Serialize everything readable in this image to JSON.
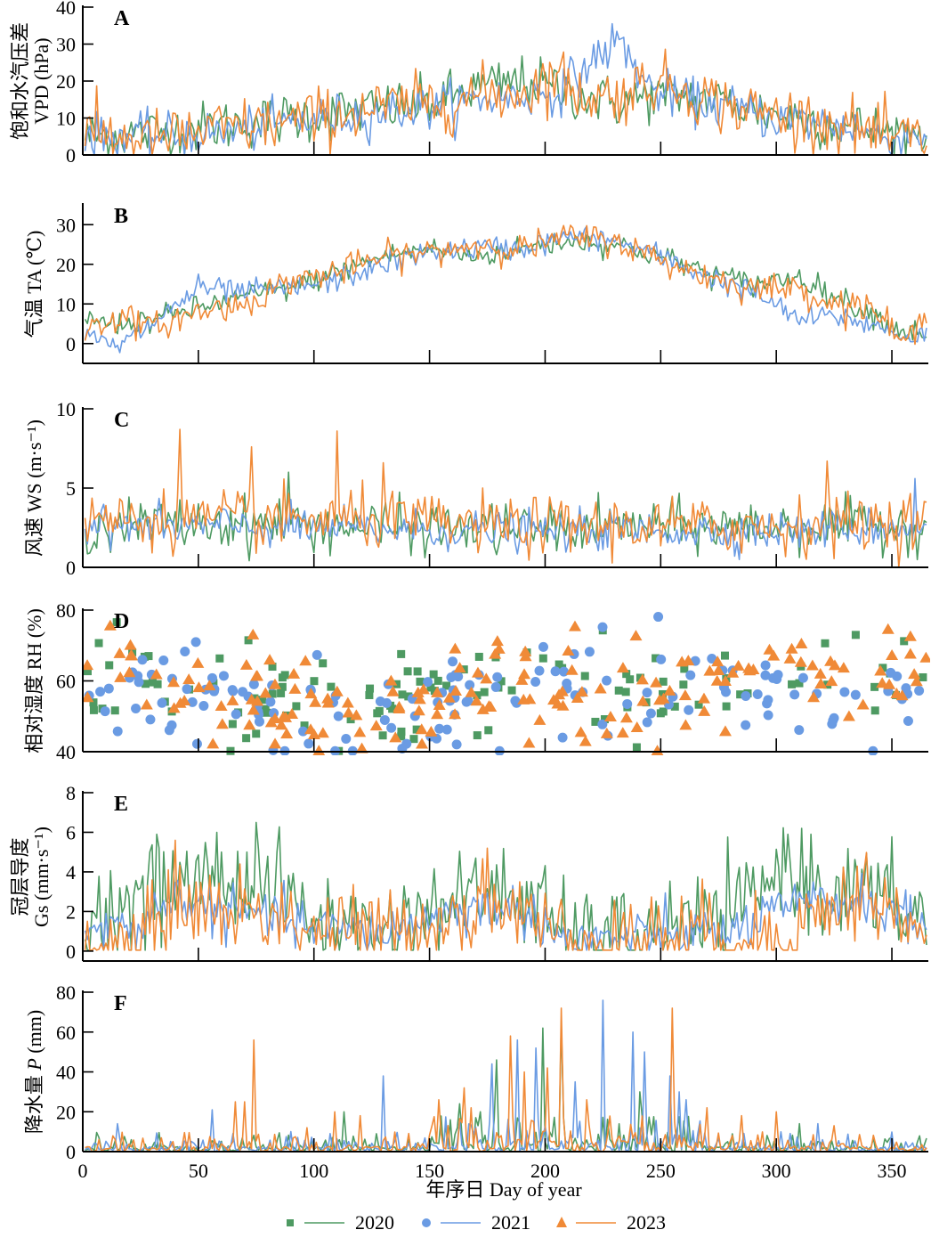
{
  "figure": {
    "xlabel": "年序日 Day of  year",
    "x_range": [
      0,
      365
    ],
    "x_ticks": [
      0,
      50,
      100,
      150,
      200,
      250,
      300,
      350
    ],
    "legend_placement": "bottom-center",
    "data_note": "Each series is recorded as anchor points read from the image. The script interpolates between them and adds small seeded noise for daily texture, so plotted lines are approximate, not exact daily values."
  },
  "legend": [
    {
      "label": "2020",
      "color": "#4E9A62",
      "marker": "square"
    },
    {
      "label": "2021",
      "color": "#6A9BE3",
      "marker": "circle"
    },
    {
      "label": "2023",
      "color": "#F08A37",
      "marker": "triangle"
    }
  ],
  "chart_data": [
    {
      "id": "A",
      "type": "line",
      "letter": "A",
      "ylabel_cn": "饱和水汽压差",
      "ylabel_en": "VPD (hPa)",
      "ylim": [
        0,
        40
      ],
      "yticks": [
        0,
        10,
        20,
        30,
        40
      ],
      "grid": false,
      "x_anchors": [
        0,
        30,
        60,
        90,
        120,
        150,
        170,
        190,
        205,
        215,
        225,
        232,
        245,
        260,
        280,
        300,
        330,
        350,
        365
      ],
      "series": [
        {
          "name": "2020",
          "values": [
            5,
            6,
            8,
            10,
            12,
            14,
            18,
            20,
            18,
            16,
            15,
            14,
            16,
            16,
            14,
            11,
            8,
            6,
            6
          ],
          "noise": 3.5
        },
        {
          "name": "2021",
          "values": [
            5,
            5,
            6,
            9,
            11,
            13,
            15,
            16,
            17,
            22,
            28,
            31,
            18,
            15,
            13,
            10,
            8,
            4,
            6
          ],
          "noise": 3
        },
        {
          "name": "2023",
          "values": [
            6,
            4,
            7,
            9,
            12,
            14,
            16,
            17,
            22,
            16,
            16,
            16,
            20,
            18,
            13,
            11,
            8,
            4,
            5
          ],
          "noise": 4
        }
      ]
    },
    {
      "id": "B",
      "type": "line",
      "letter": "B",
      "ylabel_cn": "气温",
      "ylabel_en": "TA (℃)",
      "ylim": [
        -5,
        35
      ],
      "yticks": [
        0,
        10,
        20,
        30
      ],
      "grid": false,
      "x_anchors": [
        0,
        15,
        30,
        50,
        70,
        90,
        110,
        130,
        150,
        170,
        190,
        210,
        230,
        250,
        270,
        290,
        310,
        325,
        340,
        355,
        365
      ],
      "series": [
        {
          "name": "2020",
          "values": [
            6,
            5,
            6,
            9,
            12,
            14,
            18,
            22,
            24,
            22,
            24,
            26,
            25,
            22,
            18,
            15,
            17,
            12,
            8,
            3,
            3
          ],
          "noise": 1.5
        },
        {
          "name": "2021",
          "values": [
            2,
            -1,
            5,
            14,
            13,
            14,
            16,
            20,
            23,
            24,
            24,
            27,
            26,
            22,
            17,
            13,
            6,
            7,
            5,
            2,
            2
          ],
          "noise": 1.5
        },
        {
          "name": "2023",
          "values": [
            3,
            7,
            4,
            8,
            10,
            16,
            18,
            22,
            23,
            25,
            24,
            27,
            26,
            21,
            17,
            14,
            14,
            10,
            10,
            0,
            6
          ],
          "noise": 1.8
        }
      ]
    },
    {
      "id": "C",
      "type": "line",
      "letter": "C",
      "ylabel_cn": "风速",
      "ylabel_en": "WS (m·s⁻¹)",
      "ylim": [
        0,
        10
      ],
      "yticks": [
        0,
        5,
        10
      ],
      "grid": false,
      "x_anchors": [
        0,
        60,
        120,
        180,
        240,
        300,
        365
      ],
      "series": [
        {
          "name": "2020",
          "values": [
            2.6,
            2.8,
            2.6,
            2.4,
            2.6,
            2.6,
            2.6
          ],
          "noise": 0.8
        },
        {
          "name": "2021",
          "values": [
            2.6,
            2.6,
            2.4,
            2.3,
            2.3,
            2.3,
            2.6
          ],
          "noise": 0.6
        },
        {
          "name": "2023",
          "values": [
            3.0,
            3.0,
            3.0,
            2.6,
            2.6,
            2.6,
            3.0
          ],
          "noise": 0.9
        }
      ],
      "peaks": [
        {
          "series": "2023",
          "x": 42,
          "y": 8.7
        },
        {
          "series": "2023",
          "x": 110,
          "y": 8.6
        },
        {
          "series": "2023",
          "x": 73,
          "y": 7.6
        },
        {
          "series": "2020",
          "x": 89,
          "y": 6.0
        },
        {
          "series": "2023",
          "x": 130,
          "y": 6.6
        },
        {
          "series": "2023",
          "x": 322,
          "y": 6.7
        },
        {
          "series": "2021",
          "x": 360,
          "y": 5.6
        }
      ]
    },
    {
      "id": "D",
      "type": "scatter",
      "letter": "D",
      "ylabel_cn": "相对湿度",
      "ylabel_en": "RH (%)",
      "ylim": [
        40,
        80
      ],
      "yticks": [
        40,
        60,
        80
      ],
      "grid": false,
      "x_anchors": [
        0,
        60,
        100,
        140,
        180,
        220,
        260,
        300,
        330,
        365
      ],
      "series": [
        {
          "name": "2020",
          "values": [
            66,
            58,
            52,
            55,
            60,
            62,
            55,
            62,
            60,
            62
          ],
          "noise": 9,
          "count": 120
        },
        {
          "name": "2021",
          "values": [
            60,
            55,
            50,
            54,
            58,
            57,
            58,
            60,
            55,
            62
          ],
          "noise": 9,
          "count": 150
        },
        {
          "name": "2023",
          "values": [
            65,
            55,
            50,
            52,
            58,
            56,
            55,
            68,
            62,
            65
          ],
          "noise": 9,
          "count": 170
        }
      ]
    },
    {
      "id": "E",
      "type": "line",
      "letter": "E",
      "ylabel_cn": "冠层导度",
      "ylabel_en": "Gs (mm·s⁻¹)",
      "ylim": [
        -0.5,
        8
      ],
      "yticks": [
        0,
        2,
        4,
        6,
        8
      ],
      "grid": false,
      "x_anchors": [
        0,
        25,
        40,
        60,
        80,
        100,
        130,
        160,
        180,
        195,
        210,
        240,
        280,
        300,
        320,
        340,
        365
      ],
      "series": [
        {
          "name": "2020",
          "values": [
            1.5,
            2.5,
            3.5,
            3.5,
            3.5,
            1.5,
            1.0,
            2.5,
            3.0,
            2.5,
            0.6,
            0.8,
            1.5,
            4.0,
            3.0,
            3.0,
            1.5
          ],
          "noise": 1.2
        },
        {
          "name": "2021",
          "values": [
            1.0,
            1.3,
            2.8,
            2.0,
            1.8,
            1.2,
            0.9,
            2.0,
            2.2,
            1.8,
            0.5,
            0.7,
            1.0,
            2.0,
            2.5,
            2.5,
            1.2
          ],
          "noise": 0.6
        },
        {
          "name": "2023",
          "values": [
            0.2,
            0.2,
            2.5,
            2.0,
            2.0,
            1.2,
            0.8,
            1.8,
            2.4,
            1.5,
            0.6,
            0.8,
            0.8,
            0.6,
            2.0,
            3.0,
            0.3
          ],
          "noise": 1.1
        }
      ],
      "peaks": [
        {
          "series": "2020",
          "x": 75,
          "y": 6.5
        },
        {
          "series": "2020",
          "x": 58,
          "y": 6.0
        },
        {
          "series": "2020",
          "x": 32,
          "y": 5.9
        },
        {
          "series": "2020",
          "x": 305,
          "y": 5.9
        },
        {
          "series": "2020",
          "x": 315,
          "y": 5.9
        },
        {
          "series": "2023",
          "x": 40,
          "y": 5.6
        },
        {
          "series": "2023",
          "x": 175,
          "y": 5.2
        }
      ]
    },
    {
      "id": "F",
      "type": "line",
      "letter": "F",
      "ylabel_cn": "降水量",
      "ylabel_en_pre": "P",
      "ylabel_en": " (mm)",
      "ylim": [
        0,
        80
      ],
      "yticks": [
        0,
        20,
        40,
        60,
        80
      ],
      "grid": false,
      "x_anchors": [
        0,
        365
      ],
      "series": [
        {
          "name": "2020",
          "values": [
            0,
            0
          ],
          "noise": 0
        },
        {
          "name": "2021",
          "values": [
            0,
            0
          ],
          "noise": 0
        },
        {
          "name": "2023",
          "values": [
            0,
            0
          ],
          "noise": 0
        }
      ],
      "peaks": [
        {
          "series": "2021",
          "x": 225,
          "y": 76
        },
        {
          "series": "2023",
          "x": 207,
          "y": 72
        },
        {
          "series": "2023",
          "x": 255,
          "y": 72
        },
        {
          "series": "2020",
          "x": 207,
          "y": 65
        },
        {
          "series": "2020",
          "x": 199,
          "y": 62
        },
        {
          "series": "2021",
          "x": 238,
          "y": 60
        },
        {
          "series": "2023",
          "x": 185,
          "y": 58
        },
        {
          "series": "2023",
          "x": 74,
          "y": 56
        },
        {
          "series": "2021",
          "x": 188,
          "y": 56
        },
        {
          "series": "2021",
          "x": 243,
          "y": 50
        },
        {
          "series": "2020",
          "x": 179,
          "y": 46
        },
        {
          "series": "2021",
          "x": 196,
          "y": 52
        },
        {
          "series": "2021",
          "x": 177,
          "y": 44
        },
        {
          "series": "2023",
          "x": 191,
          "y": 40
        },
        {
          "series": "2021",
          "x": 130,
          "y": 38
        },
        {
          "series": "2023",
          "x": 201,
          "y": 42
        },
        {
          "series": "2021",
          "x": 213,
          "y": 35
        },
        {
          "series": "2020",
          "x": 241,
          "y": 30
        },
        {
          "series": "2021",
          "x": 258,
          "y": 30
        },
        {
          "series": "2023",
          "x": 154,
          "y": 26
        },
        {
          "series": "2020",
          "x": 163,
          "y": 24
        },
        {
          "series": "2023",
          "x": 165,
          "y": 32
        },
        {
          "series": "2021",
          "x": 254,
          "y": 38
        },
        {
          "series": "2021",
          "x": 261,
          "y": 26
        },
        {
          "series": "2023",
          "x": 218,
          "y": 26
        },
        {
          "series": "2021",
          "x": 56,
          "y": 21
        },
        {
          "series": "2023",
          "x": 66,
          "y": 25
        },
        {
          "series": "2023",
          "x": 70,
          "y": 25
        },
        {
          "series": "2023",
          "x": 109,
          "y": 20
        },
        {
          "series": "2020",
          "x": 113,
          "y": 20
        },
        {
          "series": "2023",
          "x": 120,
          "y": 18
        },
        {
          "series": "2021",
          "x": 15,
          "y": 14
        },
        {
          "series": "2023",
          "x": 168,
          "y": 22
        },
        {
          "series": "2020",
          "x": 172,
          "y": 20
        },
        {
          "series": "2023",
          "x": 270,
          "y": 22
        },
        {
          "series": "2023",
          "x": 285,
          "y": 18
        },
        {
          "series": "2023",
          "x": 300,
          "y": 20
        },
        {
          "series": "2021",
          "x": 318,
          "y": 14
        },
        {
          "series": "2020",
          "x": 310,
          "y": 14
        },
        {
          "series": "2023",
          "x": 325,
          "y": 13
        },
        {
          "series": "2020",
          "x": 7,
          "y": 7
        },
        {
          "series": "2023",
          "x": 14,
          "y": 6
        },
        {
          "series": "2020",
          "x": 350,
          "y": 7
        },
        {
          "series": "2023",
          "x": 97,
          "y": 12
        },
        {
          "series": "2021",
          "x": 90,
          "y": 10
        }
      ]
    }
  ]
}
